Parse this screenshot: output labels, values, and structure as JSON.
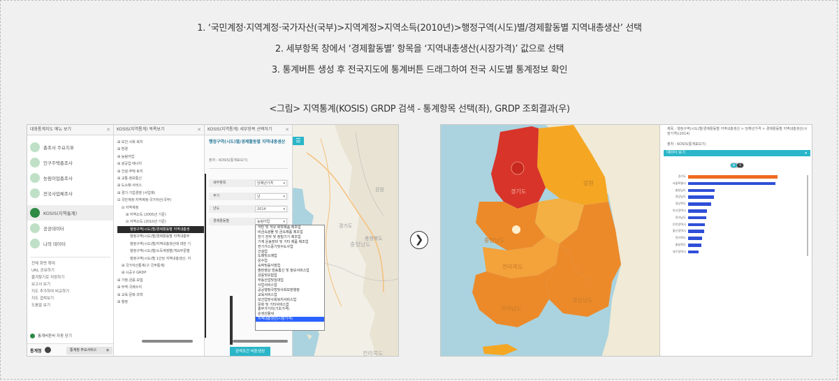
{
  "instructions": [
    "1. ‘국민계정·지역계정·국가자산(국부)>지역계정>지역소득(2010년)>행정구역(시도)별/경제활동별 지역내총생산’ 선택",
    "2. 세부항목 창에서 ‘경제활동별’ 항목을 ‘지역내총생산(시장가격)’ 값으로 선택",
    "3. 통계버튼 생성 후 전국지도에 통계버튼 드래그하여 전국 시도별 통계정보 확인"
  ],
  "caption": "<그림> 지역통계(KOSIS) GRDP 검색 - 통계항목 선택(좌), GRDP 조회결과(우)",
  "left": {
    "menu_panel": {
      "title": "대화통계지도 메뉴 보기",
      "items": [
        "총조사 주요지표",
        "인구주택총조사",
        "농림어업총조사",
        "전국사업체조사",
        "KOSIS(지역통계)",
        "공공데이터",
        "나의 데이터"
      ],
      "sub_items": [
        "전체 화면 확대",
        "URL 공유하기",
        "즐겨찾기로 저장하기",
        "보고서 보기",
        "지도 추가하여 비교하기",
        "지도 겹쳐보기",
        "도움말 보기"
      ],
      "auto_close": "통계버튼바 자동 닫기",
      "logo": "통계청",
      "footer_button": "통계청 주요서비스"
    },
    "tree_panel": {
      "title": "KOSIS(지역통계) 목록보기",
      "items": [
        "⊞ 보건·사회·복지",
        "⊞ 환경",
        "⊞ 농림어업",
        "⊞ 광공업·에너지",
        "⊞ 건설·주택·토지",
        "⊞ 교통·정보통신",
        "⊞ 도소매·서비스",
        "⊞ 경기·기업경영 (사업체)",
        "⊟ 국민계정·지역계정·국가자산(국부)",
        "⊟ 지역계정",
        "⊞ 지역소득 (2005년 기준)",
        "⊟ 지역소득 (2010년 기준)",
        "행정구역(시도)별/경제활동별 지역내총생",
        "행정구역(시도)별/경제활동별 지역내총부",
        "행정구역(시도)별/지역내총생산에 대한 기",
        "행정구역(시도)별/소득계정별/개요부문별",
        "행정구역(시도)별 1인당 지역내총생산, 지",
        "⊞ 국가자산통계(구 국부통계)",
        "⊞ 시공구 GRDP",
        "⊞ 가정·금융·보험",
        "⊞ 무역·국제수지",
        "⊞ 교육·문화·과학",
        "⊞ 행정"
      ]
    },
    "detail_panel": {
      "title": "KOSIS(지역통계) 세부항목 선택하기",
      "heading": "행정구역(시도)별/경제활동별 지역내총생산",
      "source": "출처 : KOSIS(통계표보기)",
      "fields": [
        {
          "label": "세부항목",
          "value": "당해년가격"
        },
        {
          "label": "주기",
          "value": "년"
        },
        {
          "label": "년도",
          "value": "2014"
        },
        {
          "label": "경제활동별",
          "value": "농림어업"
        }
      ],
      "dropdown_options": [
        "석탄 및 석유 화학제품 제조업",
        "비금속광물 및 금속제품 제조업",
        "전기 전자 및 정밀기기 제조업",
        "기계 운송장비 및 기타 제품 제조업",
        "전기가스증기및수도사업",
        "건설업",
        "도매및소매업",
        "운수업",
        "숙박및음식점업",
        "출판영상 방송통신 및 정보서비스업",
        "금융및보험업",
        "부동산업및임대업",
        "사업서비스업",
        "공공행정국방및사회보장행정",
        "교육서비스업",
        "보건업및사회복지서비스업",
        "문화 및 기타서비스업",
        "총부가가치(기초가격)",
        "순생산물세",
        "지역내총생산(시장가격)"
      ],
      "dropdown_selected_index": 19,
      "button": "검색조건 버튼생성"
    },
    "map_labels": [
      "강원",
      "충청북도",
      "경기도",
      "충청남도",
      "전라북도"
    ]
  },
  "right": {
    "title_line1": "제목 : 행정구역(시도)별/경제활동별 지역내총생산 > 당해년가격 > 경제활동별 지역내총생산(시장가격)(2014)",
    "source": "출처 : KOSIS(통계표보기)",
    "data_view": "데이터 보기",
    "toggle": [
      "표",
      "차"
    ],
    "chart_data": {
      "type": "bar",
      "categories": [
        "경기도",
        "서울특별시",
        "충청남도",
        "경상남도",
        "경상북도",
        "부산광역시",
        "전라남도",
        "인천광역시",
        "울산광역시",
        "전라북도",
        "충청북도",
        "대구광역시"
      ],
      "values": [
        100,
        98,
        30,
        29,
        26,
        21,
        20,
        19,
        18,
        16,
        15,
        12
      ],
      "highlight_index": 0,
      "colors": {
        "highlight": "#f06a1e",
        "normal": "#2f4fd8"
      }
    },
    "map_labels": [
      "강원",
      "경기도",
      "충청남도",
      "전라북도",
      "경상남도",
      "전라남도"
    ]
  },
  "colors": {
    "accent": "#2ab6c8",
    "green": "#2e8a45",
    "map_red": "#d8342a"
  }
}
